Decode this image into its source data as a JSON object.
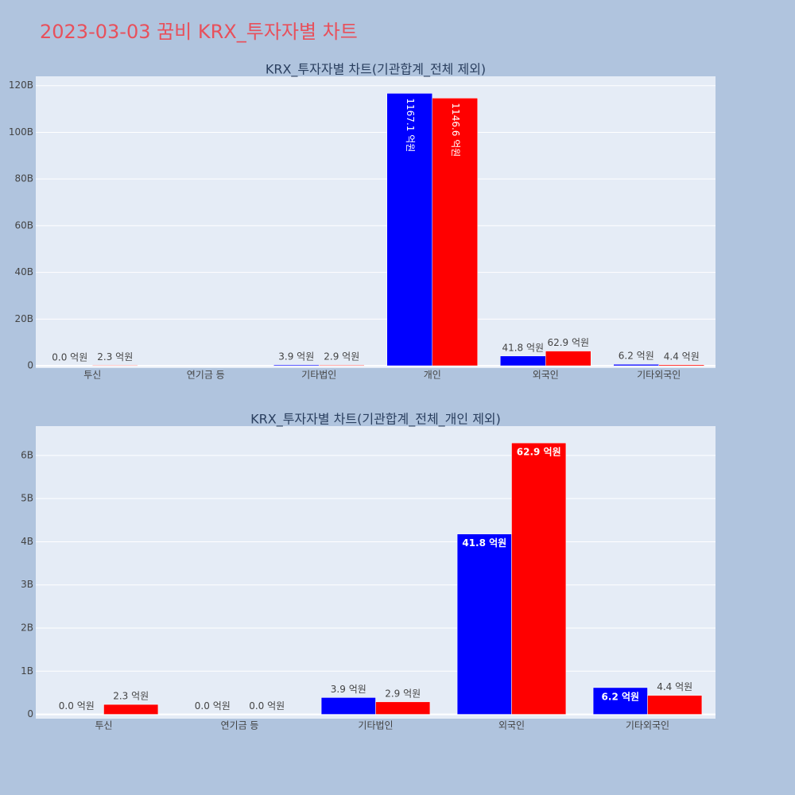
{
  "title": "2023-03-03 꿈비 KRX_투자자별 차트",
  "chart_data": [
    {
      "type": "bar",
      "title": "KRX_투자자별 차트(기관합계_전체 제외)",
      "categories": [
        "투신",
        "연기금 등",
        "기타법인",
        "개인",
        "외국인",
        "기타외국인"
      ],
      "series": [
        {
          "color": "#0000ff",
          "values": [
            0,
            null,
            0.39,
            116.71,
            4.18,
            0.62
          ],
          "value_labels": [
            "0.0 억원",
            null,
            "3.9 억원",
            "1167.1 억원",
            "41.8 억원",
            "6.2 억원"
          ]
        },
        {
          "color": "#ff0000",
          "values": [
            0.23,
            null,
            0.29,
            114.66,
            6.29,
            0.44
          ],
          "value_labels": [
            "2.3 억원",
            null,
            "2.9 억원",
            "1146.6 억원",
            "62.9 억원",
            "4.4 억원"
          ]
        }
      ],
      "ylim": [
        -1,
        124
      ],
      "yticks": [
        0,
        {
          "value": 20,
          "label": "20B"
        },
        {
          "value": 40,
          "label": "40B"
        },
        {
          "value": 60,
          "label": "60B"
        },
        {
          "value": 80,
          "label": "80B"
        },
        {
          "value": 100,
          "label": "100B"
        },
        {
          "value": 120,
          "label": "120B"
        }
      ],
      "grid": true
    },
    {
      "type": "bar",
      "title": "KRX_투자자별 차트(기관합계_전체_개인 제외)",
      "categories": [
        "투신",
        "연기금 등",
        "기타법인",
        "외국인",
        "기타외국인"
      ],
      "series": [
        {
          "color": "#0000ff",
          "values": [
            0,
            0,
            0.39,
            4.18,
            0.62
          ],
          "value_labels": [
            "0.0 억원",
            "0.0 억원",
            "3.9 억원",
            "41.8 억원",
            "6.2 억원"
          ]
        },
        {
          "color": "#ff0000",
          "values": [
            0.23,
            0,
            0.29,
            6.29,
            0.44
          ],
          "value_labels": [
            "2.3 억원",
            "0.0 억원",
            "2.9 억원",
            "62.9 억원",
            "4.4 억원"
          ]
        }
      ],
      "ylim": [
        -0.1,
        6.68
      ],
      "yticks": [
        0,
        {
          "value": 1,
          "label": "1B"
        },
        {
          "value": 2,
          "label": "2B"
        },
        {
          "value": 3,
          "label": "3B"
        },
        {
          "value": 4,
          "label": "4B"
        },
        {
          "value": 5,
          "label": "5B"
        },
        {
          "value": 6,
          "label": "6B"
        }
      ],
      "grid": true
    }
  ]
}
